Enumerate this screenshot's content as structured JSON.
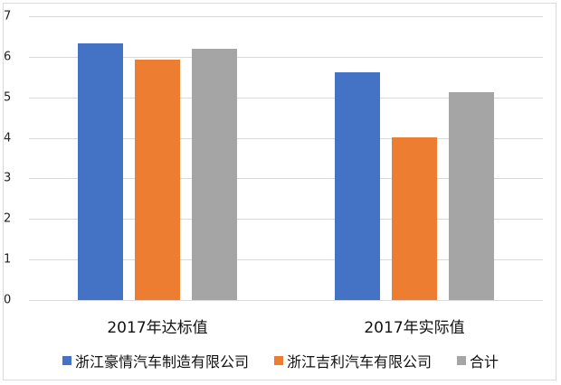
{
  "chart_data": {
    "type": "bar",
    "title": "",
    "xlabel": "",
    "ylabel": "",
    "ylim": [
      0,
      7
    ],
    "yticks": [
      "0",
      "1",
      "2",
      "3",
      "4",
      "5",
      "6",
      "7"
    ],
    "grid": true,
    "legend_position": "bottom",
    "categories": [
      "2017年达标值",
      "2017年实际值"
    ],
    "series": [
      {
        "name": "浙江豪情汽车制造有限公司",
        "color": "#4472C4",
        "values": [
          6.33,
          5.62
        ]
      },
      {
        "name": "浙江吉利汽车有限公司",
        "color": "#ED7D31",
        "values": [
          5.93,
          4.02
        ]
      },
      {
        "name": "合计",
        "color": "#A5A5A5",
        "values": [
          6.2,
          5.13
        ]
      }
    ]
  }
}
